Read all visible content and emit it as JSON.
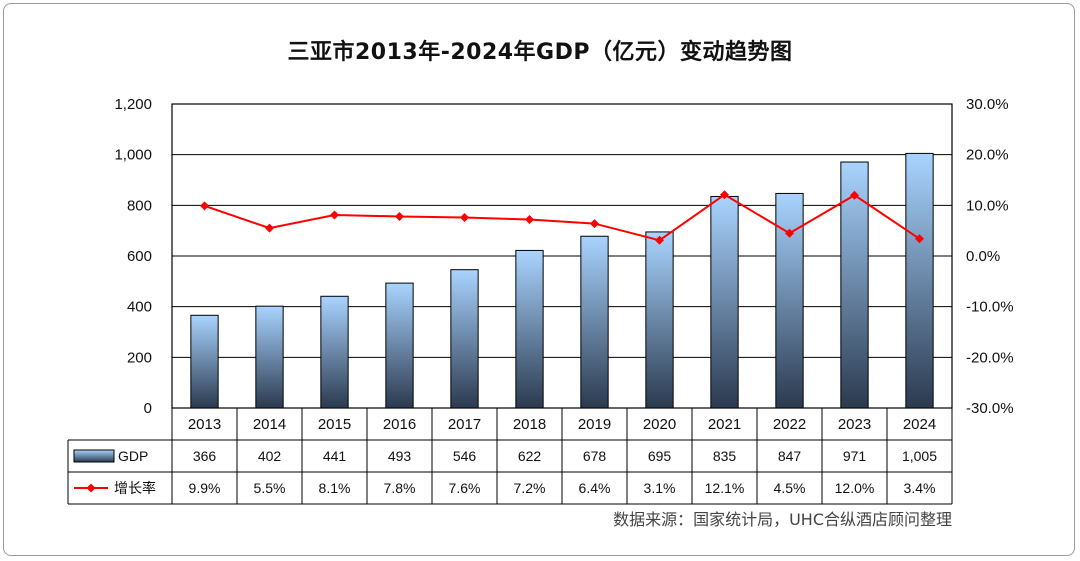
{
  "title": "三亚市2013年-2024年GDP（亿元）变动趋势图",
  "source": "数据来源：国家统计局，UHC合纵酒店顾问整理",
  "colors": {
    "bar_top": "#a9d4ff",
    "bar_bottom": "#2b3a4f",
    "line": "#ff0000"
  },
  "chart_data": {
    "type": "bar",
    "categories": [
      "2013",
      "2014",
      "2015",
      "2016",
      "2017",
      "2018",
      "2019",
      "2020",
      "2021",
      "2022",
      "2023",
      "2024"
    ],
    "series": [
      {
        "name": "GDP",
        "type": "bar",
        "axis": "left",
        "values": [
          366,
          402,
          441,
          493,
          546,
          622,
          678,
          695,
          835,
          847,
          971,
          1005
        ],
        "labels": [
          "366",
          "402",
          "441",
          "493",
          "546",
          "622",
          "678",
          "695",
          "835",
          "847",
          "971",
          "1,005"
        ]
      },
      {
        "name": "增长率",
        "type": "line",
        "axis": "right",
        "values": [
          9.9,
          5.5,
          8.1,
          7.8,
          7.6,
          7.2,
          6.4,
          3.1,
          12.1,
          4.5,
          12.0,
          3.4
        ],
        "labels": [
          "9.9%",
          "5.5%",
          "8.1%",
          "7.8%",
          "7.6%",
          "7.2%",
          "6.4%",
          "3.1%",
          "12.1%",
          "4.5%",
          "12.0%",
          "3.4%"
        ]
      }
    ],
    "y_left": {
      "ylim": [
        0,
        1200
      ],
      "ticks": [
        "0",
        "200",
        "400",
        "600",
        "800",
        "1,000",
        "1,200"
      ]
    },
    "y_right": {
      "ylim": [
        -30,
        30
      ],
      "ticks": [
        "-30.0%",
        "-20.0%",
        "-10.0%",
        "0.0%",
        "10.0%",
        "20.0%",
        "30.0%"
      ]
    },
    "grid": true,
    "legend": "data-table"
  }
}
